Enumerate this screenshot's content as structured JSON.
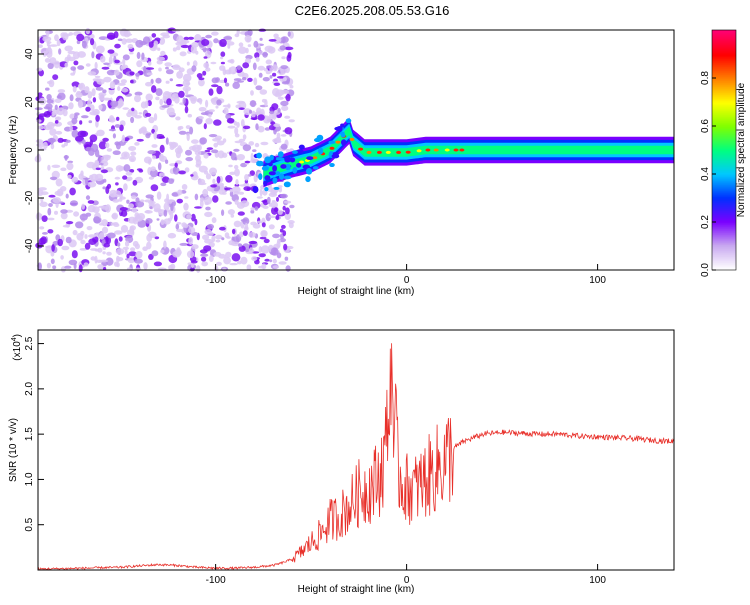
{
  "title": "C2E6.2025.208.05.53.G16",
  "chart_data": [
    {
      "type": "heatmap",
      "title": "C2E6.2025.208.05.53.G16",
      "xlabel": "Height of straight line (km)",
      "ylabel": "Frequency (Hz)",
      "xlim": [
        -193,
        140
      ],
      "ylim": [
        -50,
        50
      ],
      "x_ticks": [
        -100,
        0,
        100
      ],
      "y_ticks": [
        -40,
        -20,
        0,
        20,
        40
      ],
      "x_tick_labels": [
        "-100",
        "0",
        "100"
      ],
      "y_tick_labels": [
        "-40",
        "-20",
        "0",
        "20",
        "40"
      ],
      "colorbar": {
        "label": "Normalized spectral amplitude",
        "range": [
          0,
          1
        ],
        "ticks": [
          0.0,
          0.2,
          0.4,
          0.6,
          0.8
        ],
        "tick_labels": [
          "0.0",
          "0.2",
          "0.4",
          "0.6",
          "0.8"
        ],
        "colormap": [
          "#ffffff",
          "#c8a8f0",
          "#7a00ff",
          "#0030ff",
          "#00c8ff",
          "#00ff80",
          "#80ff00",
          "#ffff00",
          "#ff8000",
          "#ff0000",
          "#ff0070"
        ]
      },
      "ridge": {
        "x": [
          -75,
          -68,
          -60,
          -55,
          -50,
          -45,
          -40,
          -35,
          -30,
          -28,
          -25,
          -22,
          -20,
          -15,
          -10,
          -5,
          0,
          10,
          20,
          40,
          60,
          80,
          100,
          120,
          140
        ],
        "y": [
          -10,
          -8,
          -6,
          -5,
          -4,
          -2,
          0,
          4,
          8,
          3,
          1,
          -1,
          -1,
          -1,
          -1,
          -1,
          -1,
          0,
          0,
          0,
          0,
          0,
          0,
          0,
          0
        ]
      },
      "noise_region": {
        "x_from": -193,
        "x_to": -60
      }
    },
    {
      "type": "line",
      "xlabel": "Height of straight line (km)",
      "ylabel": "SNR (10 * v/v)",
      "y_multiplier_label": "(x10",
      "y_multiplier_exp": "4",
      "xlim": [
        -193,
        140
      ],
      "ylim": [
        0,
        2.65
      ],
      "x_ticks": [
        -100,
        0,
        100
      ],
      "y_ticks": [
        0.5,
        1.0,
        1.5,
        2.0,
        2.5
      ],
      "x_tick_labels": [
        "-100",
        "0",
        "100"
      ],
      "y_tick_labels": [
        "0.5",
        "1.0",
        "1.5",
        "2.0",
        "2.5"
      ],
      "color": "#e8302a",
      "series": [
        {
          "x": [
            -193,
            -170,
            -150,
            -130,
            -120,
            -110,
            -100,
            -90,
            -80,
            -70,
            -65,
            -60,
            -55,
            -50,
            -45,
            -40,
            -35,
            -30,
            -25,
            -20,
            -15,
            -12,
            -10,
            -8,
            -5,
            -3,
            0,
            5,
            10,
            15,
            20,
            25,
            30,
            40,
            50,
            60,
            70,
            80,
            90,
            100,
            110,
            120,
            130,
            140
          ],
          "y": [
            0.01,
            0.02,
            0.03,
            0.06,
            0.05,
            0.03,
            0.02,
            0.02,
            0.03,
            0.05,
            0.08,
            0.12,
            0.2,
            0.3,
            0.4,
            0.55,
            0.6,
            0.7,
            0.85,
            0.9,
            1.0,
            1.2,
            1.5,
            2.6,
            1.2,
            1.0,
            0.9,
            0.9,
            1.0,
            1.1,
            1.2,
            1.35,
            1.42,
            1.5,
            1.52,
            1.51,
            1.5,
            1.5,
            1.48,
            1.47,
            1.46,
            1.45,
            1.43,
            1.42
          ]
        }
      ]
    }
  ]
}
